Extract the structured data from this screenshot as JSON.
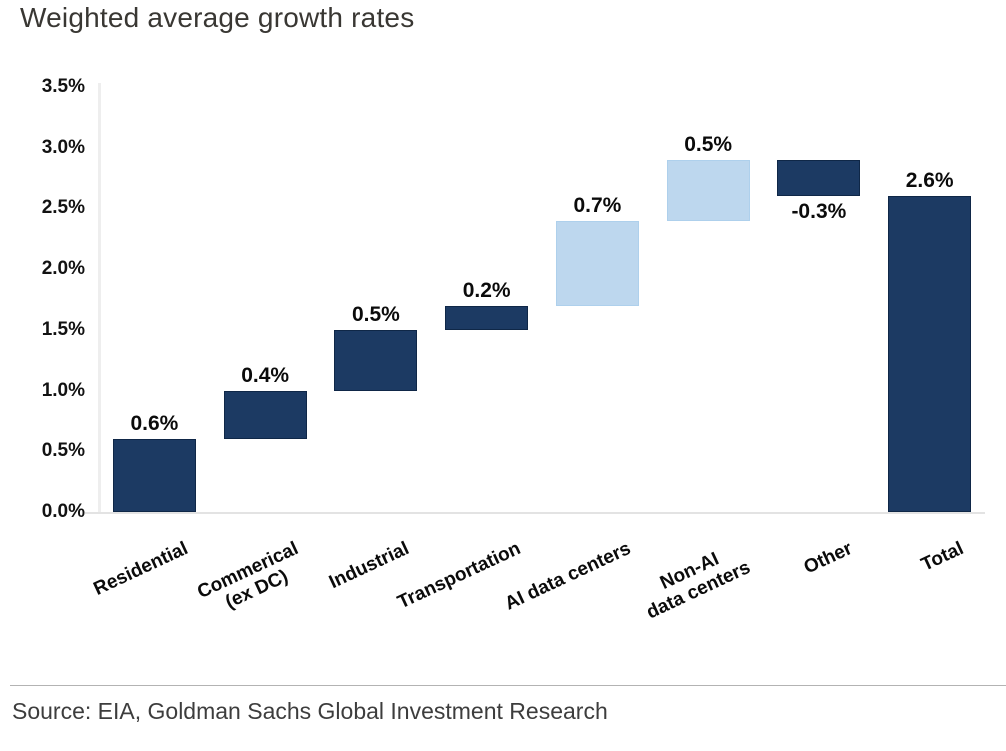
{
  "title": "Weighted average growth rates",
  "source": "Source: EIA, Goldman Sachs Global Investment Research",
  "colors": {
    "navy": "#1c3a63",
    "navy_border": "#0f2747",
    "lightblue": "#bdd7ee",
    "axis_line": "#e8e8e8",
    "rule": "#b3b3b3",
    "title_text": "#393733",
    "source_text": "#3d3d3d"
  },
  "chart_data": {
    "type": "bar",
    "subtype": "waterfall",
    "title": "Weighted average growth rates",
    "xlabel": "",
    "ylabel": "",
    "ylim": [
      0,
      3.5
    ],
    "grid": false,
    "legend": false,
    "y_ticks": [
      {
        "label": "0.0%",
        "value": 0.0
      },
      {
        "label": "0.5%",
        "value": 0.5
      },
      {
        "label": "1.0%",
        "value": 1.0
      },
      {
        "label": "1.5%",
        "value": 1.5
      },
      {
        "label": "2.0%",
        "value": 2.0
      },
      {
        "label": "2.5%",
        "value": 2.5
      },
      {
        "label": "3.0%",
        "value": 3.0
      },
      {
        "label": "3.5%",
        "value": 3.5
      }
    ],
    "categories": [
      "Residential",
      "Commerical (ex DC)",
      "Industrial",
      "Transportation",
      "AI data centers",
      "Non-AI data centers",
      "Other",
      "Total"
    ],
    "values": [
      0.6,
      0.4,
      0.5,
      0.2,
      0.7,
      0.5,
      -0.3,
      2.6
    ],
    "bars": [
      {
        "label_lines": [
          "Residential"
        ],
        "value": 0.6,
        "value_label": "0.6%",
        "start": 0.0,
        "end": 0.6,
        "color": "navy",
        "value_label_position": "above"
      },
      {
        "label_lines": [
          "Commerical",
          "(ex DC)"
        ],
        "value": 0.4,
        "value_label": "0.4%",
        "start": 0.6,
        "end": 1.0,
        "color": "navy",
        "value_label_position": "above"
      },
      {
        "label_lines": [
          "Industrial"
        ],
        "value": 0.5,
        "value_label": "0.5%",
        "start": 1.0,
        "end": 1.5,
        "color": "navy",
        "value_label_position": "above"
      },
      {
        "label_lines": [
          "Transportation"
        ],
        "value": 0.2,
        "value_label": "0.2%",
        "start": 1.5,
        "end": 1.7,
        "color": "navy",
        "value_label_position": "above"
      },
      {
        "label_lines": [
          "AI data centers"
        ],
        "value": 0.7,
        "value_label": "0.7%",
        "start": 1.7,
        "end": 2.4,
        "color": "lightblue",
        "value_label_position": "above"
      },
      {
        "label_lines": [
          "Non-AI",
          "data centers"
        ],
        "value": 0.5,
        "value_label": "0.5%",
        "start": 2.4,
        "end": 2.9,
        "color": "lightblue",
        "value_label_position": "above"
      },
      {
        "label_lines": [
          "Other"
        ],
        "value": -0.3,
        "value_label": "-0.3%",
        "start": 2.9,
        "end": 2.6,
        "color": "navy",
        "value_label_position": "below"
      },
      {
        "label_lines": [
          "Total"
        ],
        "value": 2.6,
        "value_label": "2.6%",
        "start": 0.0,
        "end": 2.6,
        "color": "navy",
        "value_label_position": "above"
      }
    ]
  }
}
